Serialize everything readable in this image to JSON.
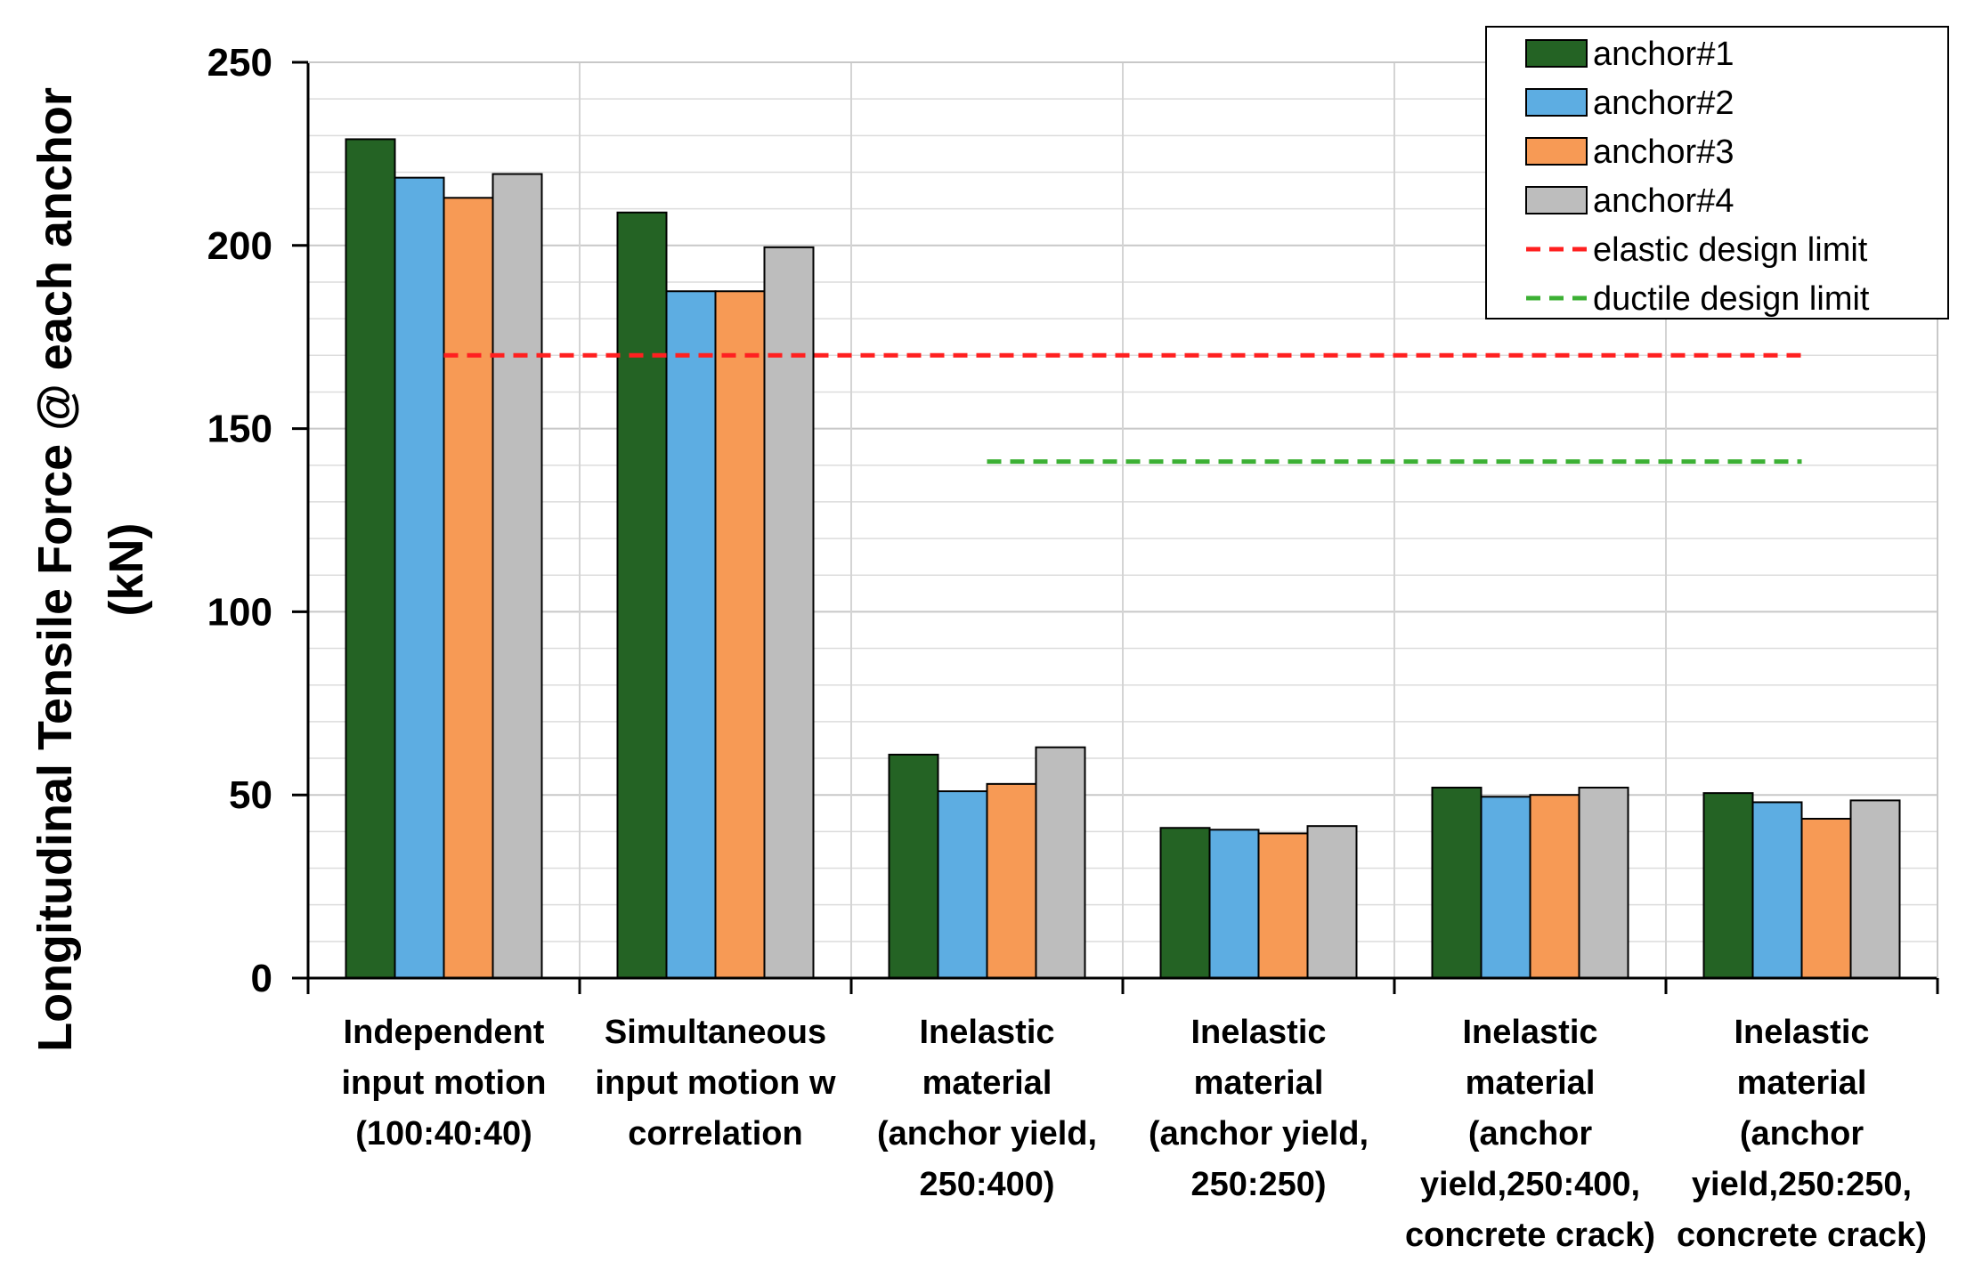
{
  "chart_data": {
    "type": "bar",
    "title": "",
    "ylabel_lines": [
      "Longitudinal Tensile Force @ each anchor",
      "(kN)"
    ],
    "xlabel": "",
    "ylim": [
      0,
      250
    ],
    "yticks": [
      "0",
      "50",
      "100",
      "150",
      "200",
      "250"
    ],
    "ytick_values": [
      0,
      50,
      100,
      150,
      200,
      250
    ],
    "grid": true,
    "legend_position": "top-right",
    "categories": [
      [
        "Independent",
        "input motion",
        "(100:40:40)"
      ],
      [
        "Simultaneous",
        "input motion w",
        "correlation"
      ],
      [
        "Inelastic",
        "material",
        "(anchor yield,",
        "250:400)"
      ],
      [
        "Inelastic",
        "material",
        "(anchor yield,",
        "250:250)"
      ],
      [
        "Inelastic",
        "material",
        "(anchor",
        "yield,250:400,",
        "concrete crack)"
      ],
      [
        "Inelastic",
        "material",
        "(anchor",
        "yield,250:250,",
        "concrete crack)"
      ]
    ],
    "series": [
      {
        "name": "anchor#1",
        "color": "#246324",
        "values": [
          229,
          209,
          61,
          41,
          52,
          50.5
        ]
      },
      {
        "name": "anchor#2",
        "color": "#5dade2",
        "values": [
          218.5,
          187.5,
          51,
          40.5,
          49.5,
          48
        ]
      },
      {
        "name": "anchor#3",
        "color": "#f79a55",
        "values": [
          213,
          187.5,
          53,
          39.5,
          50,
          43.5
        ]
      },
      {
        "name": "anchor#4",
        "color": "#bdbdbd",
        "values": [
          219.5,
          199.5,
          63,
          41.5,
          52,
          48.5
        ]
      }
    ],
    "lines": [
      {
        "name": "elastic design limit",
        "color": "#ff2020",
        "value": 170,
        "from_category": 0,
        "to_category": 5
      },
      {
        "name": "ductile design limit",
        "color": "#3cb034",
        "value": 141,
        "from_category": 2,
        "to_category": 5
      }
    ]
  }
}
